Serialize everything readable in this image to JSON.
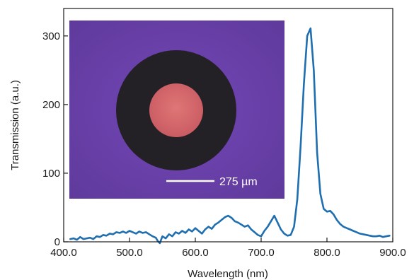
{
  "chart_data": {
    "type": "line",
    "xlabel": "Wavelength (nm)",
    "ylabel": "Transmission (a.u.)",
    "xlim": [
      400,
      900
    ],
    "ylim": [
      0,
      340
    ],
    "x_ticks": [
      400,
      500,
      600,
      700,
      800,
      900
    ],
    "x_tick_labels": [
      "400.0",
      "500.0",
      "600.0",
      "700.0",
      "800.0",
      "900.0"
    ],
    "y_ticks": [
      0,
      100,
      200,
      300
    ],
    "y_tick_labels": [
      "0",
      "100",
      "200",
      "300"
    ],
    "grid": false,
    "line_color": "#1f6fb0",
    "series": [
      {
        "x": [
          410,
          415,
          420,
          425,
          430,
          435,
          440,
          445,
          450,
          455,
          460,
          465,
          470,
          475,
          480,
          485,
          490,
          495,
          500,
          505,
          510,
          515,
          520,
          525,
          530,
          535,
          540,
          543,
          546,
          550,
          555,
          560,
          565,
          570,
          575,
          580,
          585,
          590,
          595,
          600,
          605,
          610,
          615,
          620,
          625,
          630,
          635,
          640,
          645,
          650,
          655,
          660,
          665,
          670,
          675,
          680,
          685,
          690,
          695,
          700,
          705,
          710,
          715,
          720,
          725,
          730,
          735,
          740,
          745,
          750,
          755,
          760,
          765,
          770,
          775,
          780,
          785,
          790,
          795,
          800,
          805,
          810,
          815,
          820,
          825,
          830,
          835,
          840,
          845,
          850,
          855,
          860,
          865,
          870,
          875,
          880,
          885,
          890,
          895
        ],
        "values": [
          4,
          5,
          3,
          7,
          4,
          5,
          6,
          4,
          8,
          7,
          10,
          9,
          12,
          11,
          14,
          13,
          15,
          13,
          16,
          14,
          12,
          15,
          13,
          14,
          11,
          8,
          6,
          1,
          -2,
          8,
          5,
          11,
          8,
          14,
          12,
          16,
          13,
          18,
          15,
          20,
          16,
          12,
          18,
          22,
          19,
          25,
          28,
          32,
          36,
          38,
          35,
          30,
          28,
          25,
          22,
          24,
          18,
          14,
          10,
          8,
          16,
          22,
          30,
          38,
          28,
          18,
          12,
          9,
          10,
          22,
          62,
          140,
          230,
          300,
          311,
          250,
          130,
          70,
          48,
          44,
          45,
          40,
          32,
          26,
          22,
          20,
          18,
          16,
          14,
          12,
          11,
          10,
          9,
          8,
          8,
          9,
          7,
          8,
          9
        ]
      }
    ],
    "inset": {
      "scale_bar_label": "275 µm",
      "background_color": "#6a3fa8",
      "ring_color": "#232026",
      "core_color": "#d9686a"
    }
  }
}
